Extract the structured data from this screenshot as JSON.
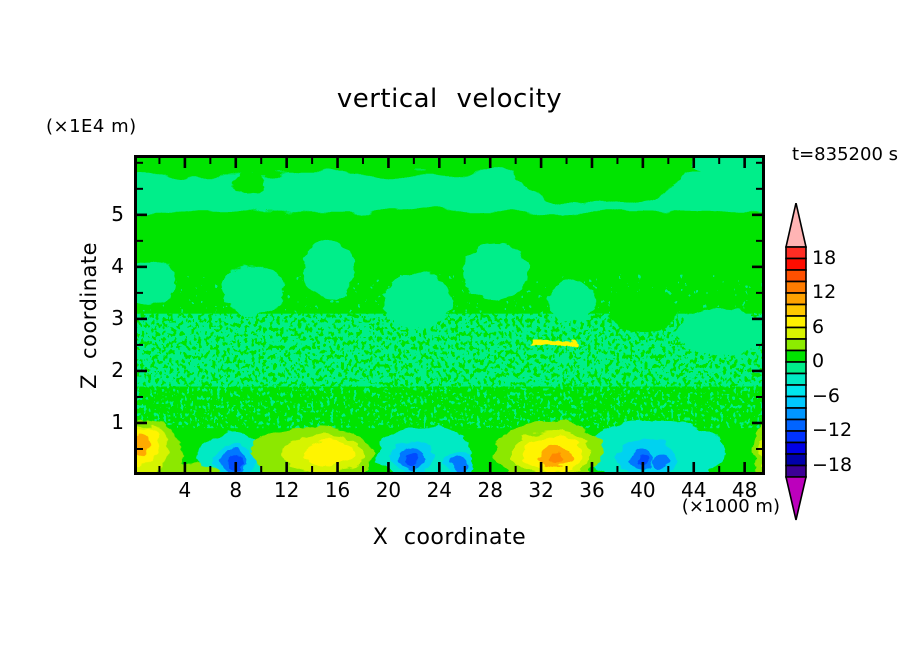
{
  "chart_data": {
    "type": "filled_contour",
    "title": "vertical velocity",
    "xlabel": "X coordinate",
    "ylabel": "Z coordinate",
    "x_units": "(×1000 m)",
    "z_units": "(×1E4 m)",
    "time_label": "t=835200 s",
    "x_range": [
      0,
      49.6
    ],
    "z_range": [
      0,
      6.15
    ],
    "x_ticks": {
      "major": [
        4,
        8,
        12,
        16,
        20,
        24,
        28,
        32,
        36,
        40,
        44,
        48
      ],
      "minor": [
        2,
        6,
        10,
        14,
        18,
        22,
        26,
        30,
        34,
        38,
        42,
        46
      ]
    },
    "z_ticks": {
      "major": [
        1,
        2,
        3,
        4,
        5
      ],
      "minor": [
        0.5,
        1.5,
        2.5,
        3.5,
        4.5,
        5.5,
        6.0
      ]
    },
    "colorbar": {
      "range": [
        -20,
        20
      ],
      "level_step": 2,
      "labeled_values": [
        18,
        12,
        6,
        0,
        -6,
        -12,
        -18
      ],
      "over_color": "#ffb4b4",
      "under_color": "#bc00bc",
      "segments_top_to_bottom": [
        "#ff2d24",
        "#fe0d00",
        "#ff5000",
        "#ff7c00",
        "#ffa200",
        "#ffc800",
        "#fff000",
        "#d8f400",
        "#8ceb00",
        "#00e400",
        "#00ee8a",
        "#00eac4",
        "#00e6ee",
        "#00c8ff",
        "#0096ff",
        "#0064ff",
        "#0032ff",
        "#0000e6",
        "#0000aa",
        "#3c0096"
      ]
    },
    "field": {
      "base": "p0",
      "palette": {
        "p14": "#ff8800",
        "p10": "#ffaa00",
        "p6": "#fff400",
        "p4": "#d6f400",
        "p2": "#8ce800",
        "p0": "#00e400",
        "m2": "#00ee8a",
        "m4": "#00eac4",
        "m6": "#00d2f0",
        "m8": "#00aaff",
        "m10": "#0078ff",
        "m12": "#004cff"
      },
      "features": [
        {
          "t": "band",
          "z1": 5.05,
          "z2": 5.8,
          "c": "m2",
          "f": "rough2"
        },
        {
          "t": "blob",
          "x": 36.5,
          "z": 5.95,
          "rx": 6.8,
          "rz": 0.75,
          "c": "p0",
          "f": "rough2"
        },
        {
          "t": "blob",
          "x": 48.8,
          "z": 6.15,
          "rx": 5.0,
          "rz": 0.6,
          "c": "m2",
          "f": "rough2"
        },
        {
          "t": "blob",
          "x": 9,
          "z": 5.62,
          "rx": 1.4,
          "rz": 0.2,
          "c": "p0",
          "f": "rough"
        },
        {
          "t": "blob",
          "x": 1.3,
          "z": 3.7,
          "rx": 2.0,
          "rz": 0.45,
          "c": "m2",
          "f": "rough"
        },
        {
          "t": "blob",
          "x": 9.3,
          "z": 3.55,
          "rx": 2.4,
          "rz": 0.5,
          "c": "m2",
          "f": "rough"
        },
        {
          "t": "blob",
          "x": 15.3,
          "z": 3.95,
          "rx": 2.0,
          "rz": 0.6,
          "c": "m2",
          "f": "rough"
        },
        {
          "t": "blob",
          "x": 22.3,
          "z": 3.35,
          "rx": 2.7,
          "rz": 0.55,
          "c": "m2",
          "f": "rough"
        },
        {
          "t": "blob",
          "x": 28.4,
          "z": 3.9,
          "rx": 2.6,
          "rz": 0.55,
          "c": "m2",
          "f": "rough"
        },
        {
          "t": "blob",
          "x": 34.5,
          "z": 3.35,
          "rx": 1.8,
          "rz": 0.4,
          "c": "m2",
          "f": "rough"
        },
        {
          "t": "blob",
          "x": 46.2,
          "z": 2.75,
          "rx": 3.4,
          "rz": 0.45,
          "c": "m2",
          "f": "rough"
        },
        {
          "t": "noise",
          "z1": 3.05,
          "z2": 3.85,
          "c": "m2",
          "f": "noiseC"
        },
        {
          "t": "noise",
          "z1": 1.7,
          "z2": 3.1,
          "c": "m2",
          "f": "noiseA"
        },
        {
          "t": "noise",
          "z1": 0.9,
          "z2": 1.75,
          "c": "m2",
          "f": "noiseB"
        },
        {
          "t": "blob",
          "x": 40,
          "z": 3.15,
          "rx": 2.5,
          "rz": 0.4,
          "c": "p0",
          "f": "rough"
        },
        {
          "t": "blob",
          "x": 33,
          "z": 2.52,
          "rx": 1.9,
          "rz": 0.05,
          "c": "p6",
          "f": "rough"
        },
        {
          "t": "blob",
          "x": 41,
          "z": 0.45,
          "rx": 5.6,
          "rz": 0.6,
          "c": "m4",
          "f": "rough"
        },
        {
          "t": "blob",
          "x": 22.8,
          "z": 0.4,
          "rx": 3.7,
          "rz": 0.55,
          "c": "m4",
          "f": "rough"
        },
        {
          "t": "blob",
          "x": 7.7,
          "z": 0.3,
          "rx": 2.7,
          "rz": 0.5,
          "c": "m4",
          "f": "rough"
        },
        {
          "t": "blob",
          "x": 1.2,
          "z": 0.45,
          "rx": 2.7,
          "rz": 0.6,
          "rot": 20,
          "c": "p2",
          "f": "rough"
        },
        {
          "t": "blob",
          "x": 14,
          "z": 0.4,
          "rx": 4.9,
          "rz": 0.52,
          "c": "p2",
          "f": "rough"
        },
        {
          "t": "blob",
          "x": 32.6,
          "z": 0.45,
          "rx": 4.3,
          "rz": 0.58,
          "c": "p2",
          "f": "rough"
        },
        {
          "t": "blob",
          "x": 3,
          "z": 0.07,
          "rx": 3.6,
          "rz": 0.16,
          "c": "p2",
          "f": "rough"
        },
        {
          "t": "blob",
          "x": 1.0,
          "z": 0.5,
          "rx": 1.8,
          "rz": 0.47,
          "rot": 20,
          "c": "p4",
          "f": "rough"
        },
        {
          "t": "blob",
          "x": 14.9,
          "z": 0.4,
          "rx": 3.3,
          "rz": 0.36,
          "c": "p4",
          "f": "rough"
        },
        {
          "t": "blob",
          "x": 32.8,
          "z": 0.42,
          "rx": 3.1,
          "rz": 0.44,
          "c": "p4",
          "f": "rough"
        },
        {
          "t": "blob",
          "x": 0.8,
          "z": 0.55,
          "rx": 1.15,
          "rz": 0.4,
          "rot": 20,
          "c": "p6",
          "f": "rough"
        },
        {
          "t": "blob",
          "x": 15.4,
          "z": 0.42,
          "rx": 2.0,
          "rz": 0.23,
          "c": "p6",
          "f": "rough"
        },
        {
          "t": "blob",
          "x": 33.0,
          "z": 0.42,
          "rx": 2.3,
          "rz": 0.35,
          "c": "p6",
          "f": "rough"
        },
        {
          "t": "blob",
          "x": 0.65,
          "z": 0.58,
          "rx": 0.6,
          "rz": 0.24,
          "rot": 20,
          "c": "p10",
          "f": "rough"
        },
        {
          "t": "blob",
          "x": 33.1,
          "z": 0.36,
          "rx": 1.25,
          "rz": 0.19,
          "c": "p10",
          "f": "rough"
        },
        {
          "t": "blob",
          "x": 33.3,
          "z": 0.33,
          "rx": 0.6,
          "rz": 0.1,
          "c": "p14",
          "f": "rough"
        },
        {
          "t": "blob",
          "x": 21.9,
          "z": 0.35,
          "rx": 1.7,
          "rz": 0.32,
          "c": "m6",
          "f": "rough"
        },
        {
          "t": "blob",
          "x": 25.6,
          "z": 0.2,
          "rx": 1.15,
          "rz": 0.27,
          "c": "m6",
          "f": "rough"
        },
        {
          "t": "blob",
          "x": 40.3,
          "z": 0.33,
          "rx": 2.3,
          "rz": 0.37,
          "c": "m6",
          "f": "rough"
        },
        {
          "t": "blob",
          "x": 7.8,
          "z": 0.27,
          "rx": 1.5,
          "rz": 0.33,
          "c": "m6",
          "f": "rough"
        },
        {
          "t": "blob",
          "x": 21.8,
          "z": 0.33,
          "rx": 0.95,
          "rz": 0.21,
          "c": "m10",
          "f": "rough"
        },
        {
          "t": "blob",
          "x": 25.6,
          "z": 0.18,
          "rx": 0.68,
          "rz": 0.17,
          "c": "m10",
          "f": "rough"
        },
        {
          "t": "blob",
          "x": 39.9,
          "z": 0.3,
          "rx": 0.85,
          "rz": 0.19,
          "c": "m10",
          "f": "rough"
        },
        {
          "t": "blob",
          "x": 41.4,
          "z": 0.28,
          "rx": 0.6,
          "rz": 0.15,
          "c": "m10",
          "f": "rough"
        },
        {
          "t": "blob",
          "x": 7.8,
          "z": 0.26,
          "rx": 0.9,
          "rz": 0.25,
          "c": "m10",
          "f": "rough"
        },
        {
          "t": "blob",
          "x": 21.9,
          "z": 0.31,
          "rx": 0.45,
          "rz": 0.11,
          "c": "m12",
          "f": "rough"
        },
        {
          "t": "blob",
          "x": 40.1,
          "z": 0.29,
          "rx": 0.4,
          "rz": 0.1,
          "c": "m12",
          "f": "rough"
        },
        {
          "t": "blob",
          "x": 8.0,
          "z": 0.23,
          "rx": 0.5,
          "rz": 0.15,
          "c": "m12",
          "f": "rough"
        },
        {
          "t": "blob",
          "x": 49.6,
          "z": 0.45,
          "rx": 0.9,
          "rz": 0.55,
          "c": "p2",
          "f": "rough"
        },
        {
          "t": "blob",
          "x": 49.7,
          "z": 0.45,
          "rx": 0.55,
          "rz": 0.4,
          "c": "p4",
          "f": "rough"
        },
        {
          "t": "blob",
          "x": 49.8,
          "z": 0.42,
          "rx": 0.35,
          "rz": 0.3,
          "c": "p6",
          "f": "rough"
        }
      ]
    }
  }
}
